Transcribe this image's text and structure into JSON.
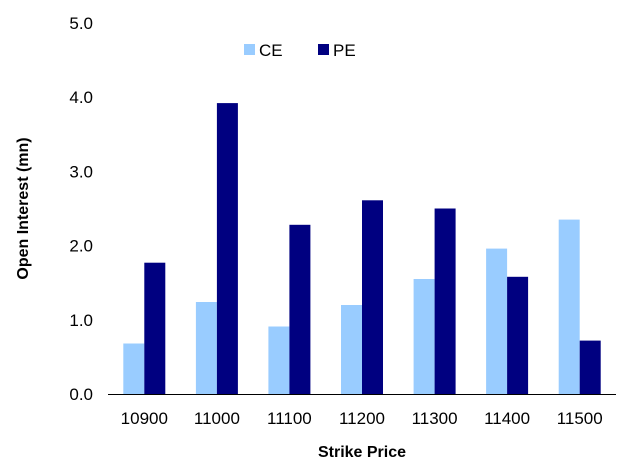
{
  "chart_data": {
    "type": "bar",
    "xlabel": "Strike Price",
    "ylabel": "Open Interest (mn)",
    "categories": [
      "10900",
      "11000",
      "11100",
      "11200",
      "11300",
      "11400",
      "11500"
    ],
    "ylim": [
      0,
      5
    ],
    "yticks": [
      "0.0",
      "1.0",
      "2.0",
      "3.0",
      "4.0",
      "5.0"
    ],
    "grid": false,
    "legend_position": "top-center",
    "series": [
      {
        "name": "CE",
        "color": "#99CCFF",
        "values": [
          0.68,
          1.24,
          0.91,
          1.2,
          1.55,
          1.96,
          2.35
        ]
      },
      {
        "name": "PE",
        "color": "#000080",
        "values": [
          1.77,
          3.92,
          2.28,
          2.61,
          2.5,
          1.58,
          0.72
        ]
      }
    ]
  }
}
